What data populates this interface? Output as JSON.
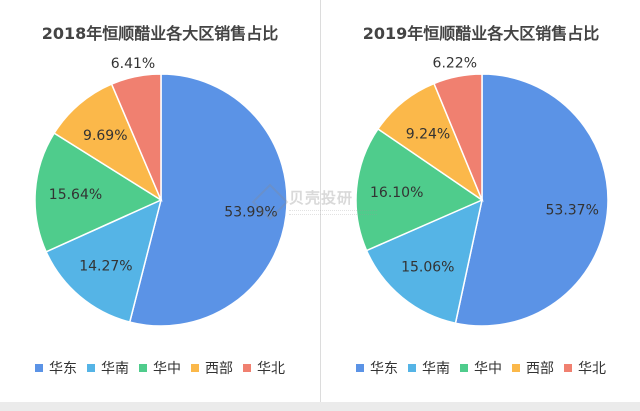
{
  "chart_data": [
    {
      "type": "pie",
      "title": "2018年恒顺醋业各大区销售占比",
      "categories": [
        "华东",
        "华南",
        "华中",
        "西部",
        "华北"
      ],
      "values": [
        53.99,
        14.27,
        15.64,
        9.69,
        6.41
      ],
      "labels": [
        "53.99%",
        "14.27%",
        "15.64%",
        "9.69%",
        "6.41%"
      ],
      "colors": [
        "#5b93e6",
        "#55b4e6",
        "#4fcc8c",
        "#fbb84a",
        "#f08070"
      ],
      "legend_position": "bottom"
    },
    {
      "type": "pie",
      "title": "2019年恒顺醋业各大区销售占比",
      "categories": [
        "华东",
        "华南",
        "华中",
        "西部",
        "华北"
      ],
      "values": [
        53.37,
        15.06,
        16.1,
        9.24,
        6.22
      ],
      "labels": [
        "53.37%",
        "15.06%",
        "16.10%",
        "9.24%",
        "6.22%"
      ],
      "colors": [
        "#5b93e6",
        "#55b4e6",
        "#4fcc8c",
        "#fbb84a",
        "#f08070"
      ],
      "legend_position": "bottom"
    }
  ],
  "watermark": {
    "text": "贝壳投研"
  }
}
